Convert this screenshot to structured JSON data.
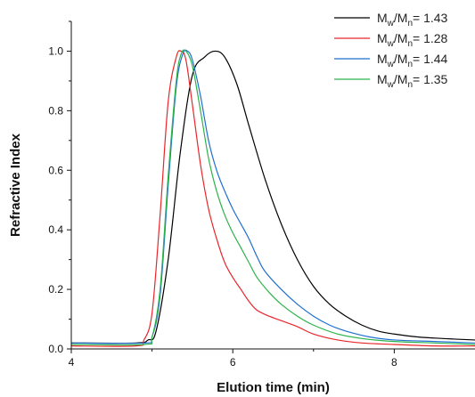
{
  "chart_data": {
    "type": "line",
    "title": "",
    "xlabel": "Elution time (min)",
    "ylabel": "Refractive Index",
    "xlim": [
      4,
      9
    ],
    "ylim": [
      0,
      1.1
    ],
    "x_ticks": [
      4,
      6,
      8
    ],
    "x_tick_labels": [
      "4",
      "6",
      "8"
    ],
    "y_ticks": [
      0.0,
      0.2,
      0.4,
      0.6,
      0.8,
      1.0
    ],
    "y_tick_labels": [
      "0.0",
      "0.2",
      "0.4",
      "0.6",
      "0.8",
      "1.0"
    ],
    "grid": false,
    "legend_position": "top-right",
    "series": [
      {
        "name": "Mw/Mn= 1.43",
        "legend": {
          "a": "M",
          "a_sub": "w",
          "b": "/M",
          "b_sub": "n",
          "value": "= 1.43"
        },
        "color": "#000000",
        "x": [
          4.0,
          4.8,
          4.95,
          5.05,
          5.2,
          5.35,
          5.5,
          5.65,
          5.78,
          5.9,
          6.05,
          6.2,
          6.4,
          6.6,
          6.8,
          7.0,
          7.2,
          7.4,
          7.6,
          7.8,
          8.0,
          8.3,
          8.6,
          9.0
        ],
        "values": [
          0.02,
          0.02,
          0.03,
          0.06,
          0.3,
          0.66,
          0.92,
          0.98,
          1.0,
          0.98,
          0.89,
          0.75,
          0.57,
          0.42,
          0.3,
          0.21,
          0.15,
          0.11,
          0.08,
          0.06,
          0.05,
          0.04,
          0.035,
          0.03
        ]
      },
      {
        "name": "Mw/Mn= 1.28",
        "legend": {
          "a": "M",
          "a_sub": "w",
          "b": "/M",
          "b_sub": "n",
          "value": "= 1.28"
        },
        "color": "#e8262b",
        "x": [
          4.0,
          4.8,
          4.9,
          5.0,
          5.1,
          5.2,
          5.3,
          5.36,
          5.42,
          5.5,
          5.6,
          5.7,
          5.8,
          5.9,
          6.0,
          6.1,
          6.2,
          6.3,
          6.45,
          6.6,
          6.8,
          7.0,
          7.3,
          7.6,
          8.0,
          8.5,
          9.0
        ],
        "values": [
          0.01,
          0.01,
          0.03,
          0.12,
          0.45,
          0.83,
          0.98,
          1.0,
          0.97,
          0.82,
          0.62,
          0.47,
          0.37,
          0.29,
          0.24,
          0.2,
          0.16,
          0.13,
          0.11,
          0.095,
          0.075,
          0.05,
          0.03,
          0.02,
          0.015,
          0.01,
          0.01
        ]
      },
      {
        "name": "Mw/Mn= 1.44",
        "legend": {
          "a": "M",
          "a_sub": "w",
          "b": "/M",
          "b_sub": "n",
          "value": "= 1.44"
        },
        "color": "#1f6fd1",
        "x": [
          4.0,
          4.9,
          5.0,
          5.1,
          5.2,
          5.3,
          5.38,
          5.44,
          5.5,
          5.6,
          5.7,
          5.8,
          5.9,
          6.0,
          6.1,
          6.2,
          6.3,
          6.4,
          6.6,
          6.8,
          7.0,
          7.2,
          7.4,
          7.7,
          8.0,
          8.5,
          9.0
        ],
        "values": [
          0.02,
          0.02,
          0.04,
          0.18,
          0.55,
          0.88,
          0.99,
          1.0,
          0.97,
          0.85,
          0.7,
          0.6,
          0.53,
          0.47,
          0.42,
          0.37,
          0.31,
          0.26,
          0.2,
          0.15,
          0.11,
          0.08,
          0.06,
          0.04,
          0.03,
          0.025,
          0.02
        ]
      },
      {
        "name": "Mw/Mn= 1.35",
        "legend": {
          "a": "M",
          "a_sub": "w",
          "b": "/M",
          "b_sub": "n",
          "value": "= 1.35"
        },
        "color": "#2db34a",
        "x": [
          4.0,
          4.9,
          5.0,
          5.1,
          5.2,
          5.3,
          5.36,
          5.42,
          5.5,
          5.6,
          5.7,
          5.8,
          5.9,
          6.0,
          6.1,
          6.2,
          6.3,
          6.45,
          6.6,
          6.8,
          7.0,
          7.3,
          7.6,
          8.0,
          8.5,
          9.0
        ],
        "values": [
          0.015,
          0.015,
          0.04,
          0.2,
          0.58,
          0.9,
          0.99,
          1.0,
          0.95,
          0.8,
          0.64,
          0.53,
          0.45,
          0.39,
          0.34,
          0.29,
          0.24,
          0.19,
          0.15,
          0.11,
          0.08,
          0.05,
          0.035,
          0.025,
          0.02,
          0.015
        ]
      }
    ]
  }
}
